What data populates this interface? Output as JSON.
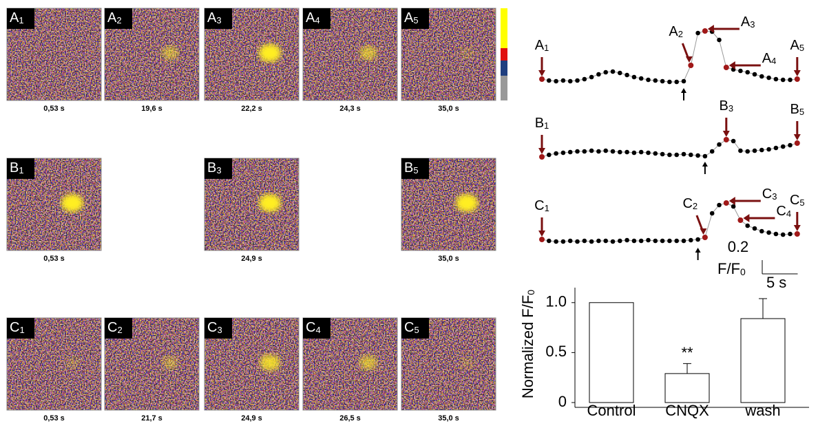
{
  "panels": [
    {
      "items": [
        {
          "main": "A",
          "sub": "1",
          "time": "0,53 s"
        },
        {
          "main": "A",
          "sub": "2",
          "time": "19,6 s"
        },
        {
          "main": "A",
          "sub": "3",
          "time": "22,2 s"
        },
        {
          "main": "A",
          "sub": "4",
          "time": "24,3 s"
        },
        {
          "main": "A",
          "sub": "5",
          "time": "35,0 s"
        }
      ]
    },
    {
      "items": [
        {
          "main": "B",
          "sub": "1",
          "time": "0,53 s"
        },
        {
          "main": "B",
          "sub": "3",
          "time": "24,9 s"
        },
        {
          "main": "B",
          "sub": "5",
          "time": "35,0 s"
        }
      ]
    },
    {
      "items": [
        {
          "main": "C",
          "sub": "1",
          "time": "0,53 s"
        },
        {
          "main": "C",
          "sub": "2",
          "time": "21,7 s"
        },
        {
          "main": "C",
          "sub": "3",
          "time": "24,9 s"
        },
        {
          "main": "C",
          "sub": "4",
          "time": "26,5 s"
        },
        {
          "main": "C",
          "sub": "5",
          "time": "35,0 s"
        }
      ]
    }
  ],
  "traces": [
    {
      "x": [
        0,
        1,
        2,
        3,
        4,
        5,
        6,
        7,
        8,
        9,
        10,
        11,
        12,
        13,
        14,
        15,
        16,
        17,
        18,
        19,
        20,
        21,
        22,
        23,
        24,
        25,
        26,
        27,
        28,
        29,
        30,
        31,
        32,
        33,
        34,
        35,
        36
      ],
      "values": [
        1.03,
        1.01,
        1.0,
        1.01,
        1.0,
        1.01,
        1.03,
        1.06,
        1.1,
        1.13,
        1.14,
        1.12,
        1.09,
        1.06,
        1.04,
        1.02,
        1.01,
        1.0,
        0.99,
        0.99,
        1.0,
        1.23,
        1.7,
        1.73,
        1.72,
        1.6,
        1.2,
        1.17,
        1.15,
        1.13,
        1.1,
        1.07,
        1.05,
        1.03,
        1.02,
        1.02,
        1.03
      ],
      "labels": [
        {
          "main": "A",
          "sub": "1"
        },
        {
          "main": "A",
          "sub": "2"
        },
        {
          "main": "A",
          "sub": "3"
        },
        {
          "main": "A",
          "sub": "4"
        },
        {
          "main": "A",
          "sub": "5"
        }
      ]
    },
    {
      "x": [
        0,
        1,
        2,
        3,
        4,
        5,
        6,
        7,
        8,
        9,
        10,
        11,
        12,
        13,
        14,
        15,
        16,
        17,
        18,
        19,
        20,
        21,
        22,
        23,
        24,
        25,
        26,
        27,
        28,
        29,
        30,
        31,
        32,
        33,
        34,
        35,
        36
      ],
      "values": [
        0.97,
        1.0,
        1.02,
        1.03,
        1.04,
        1.05,
        1.05,
        1.06,
        1.05,
        1.06,
        1.05,
        1.04,
        1.04,
        1.03,
        1.04,
        1.03,
        1.02,
        1.01,
        1.0,
        1.0,
        1.01,
        1.0,
        0.99,
        0.98,
        1.05,
        1.15,
        1.22,
        1.2,
        1.06,
        1.05,
        1.06,
        1.07,
        1.08,
        1.1,
        1.12,
        1.14,
        1.17
      ],
      "labels": [
        {
          "main": "B",
          "sub": "1"
        },
        {
          "main": "B",
          "sub": "3"
        },
        {
          "main": "B",
          "sub": "5"
        }
      ]
    },
    {
      "x": [
        0,
        1,
        2,
        3,
        4,
        5,
        6,
        7,
        8,
        9,
        10,
        11,
        12,
        13,
        14,
        15,
        16,
        17,
        18,
        19,
        20,
        21,
        22,
        23,
        24,
        25,
        26,
        27,
        28,
        29,
        30,
        31,
        32,
        33,
        34,
        35,
        36
      ],
      "values": [
        1.02,
        1.0,
        0.99,
        0.99,
        1.0,
        0.99,
        1.0,
        0.99,
        1.0,
        1.0,
        0.99,
        1.0,
        1.01,
        1.0,
        1.0,
        1.01,
        1.0,
        1.0,
        1.0,
        1.0,
        1.0,
        1.01,
        1.02,
        1.05,
        1.4,
        1.52,
        1.55,
        1.5,
        1.3,
        1.22,
        1.18,
        1.14,
        1.12,
        1.1,
        1.09,
        1.1,
        1.1
      ],
      "labels": [
        {
          "main": "C",
          "sub": "1"
        },
        {
          "main": "C",
          "sub": "2"
        },
        {
          "main": "C",
          "sub": "3"
        },
        {
          "main": "C",
          "sub": "4"
        },
        {
          "main": "C",
          "sub": "5"
        }
      ]
    }
  ],
  "scale_bar": {
    "y_value": 0.2,
    "y_unit": {
      "main": "F/F",
      "sub": "0"
    },
    "x_value": 5,
    "x_unit": "s"
  },
  "chart_data": {
    "type": "bar",
    "y_label": {
      "main": "Normalized F/F",
      "sub": "0"
    },
    "categories": [
      "Control",
      "CNQX",
      "wash"
    ],
    "values": [
      1.0,
      0.29,
      0.84
    ],
    "errors": [
      null,
      0.1,
      0.2
    ],
    "annotations": [
      {
        "text": "**",
        "category": 1
      }
    ],
    "color": "#ffffff",
    "ylim": [
      0,
      1.15
    ],
    "yticks": [
      0,
      {
        "value": 0.5,
        "label": "0.5"
      },
      {
        "value": 1,
        "label": "1.0"
      }
    ]
  }
}
